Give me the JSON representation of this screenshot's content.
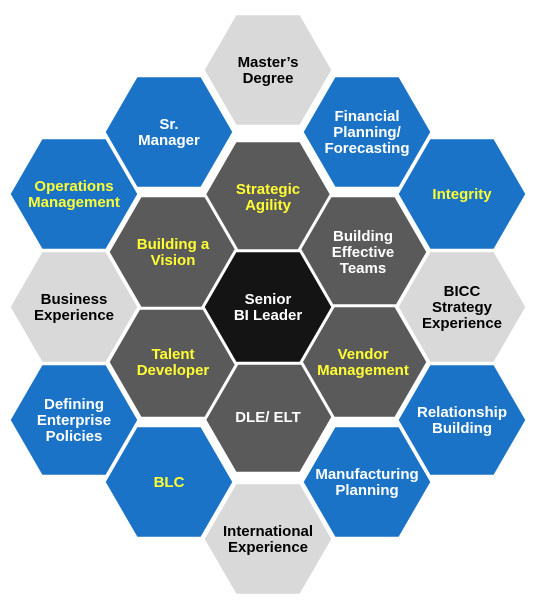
{
  "colors": {
    "center": "#141414",
    "inner": "#5a5a5a",
    "blue": "#1a73c6",
    "light": "#d9d9d9",
    "text_yellow": "#ffff33",
    "text_white": "#ffffff",
    "text_black": "#000000"
  },
  "hexagons": [
    {
      "id": "center",
      "ring": "center",
      "lines": [
        "Senior",
        "BI Leader"
      ],
      "text": "white"
    },
    {
      "id": "inner-0",
      "ring": "inner",
      "lines": [
        "Strategic",
        "Agility"
      ],
      "text": "yellow"
    },
    {
      "id": "inner-1",
      "ring": "inner",
      "lines": [
        "Building",
        "Effective",
        "Teams"
      ],
      "text": "white"
    },
    {
      "id": "inner-2",
      "ring": "inner",
      "lines": [
        "Vendor",
        "Management"
      ],
      "text": "yellow"
    },
    {
      "id": "inner-3",
      "ring": "inner",
      "lines": [
        "DLE/ ELT"
      ],
      "text": "white"
    },
    {
      "id": "inner-4",
      "ring": "inner",
      "lines": [
        "Talent",
        "Developer"
      ],
      "text": "yellow"
    },
    {
      "id": "inner-5",
      "ring": "inner",
      "lines": [
        "Building a",
        "Vision"
      ],
      "text": "yellow"
    },
    {
      "id": "outer-0",
      "ring": "light",
      "lines": [
        "Master’s",
        "Degree"
      ],
      "text": "black"
    },
    {
      "id": "outer-1",
      "ring": "blue",
      "lines": [
        "Financial",
        "Planning/",
        "Forecasting"
      ],
      "text": "white"
    },
    {
      "id": "outer-2",
      "ring": "blue",
      "lines": [
        "Integrity"
      ],
      "text": "yellow"
    },
    {
      "id": "outer-3",
      "ring": "light",
      "lines": [
        "BICC",
        "Strategy",
        "Experience"
      ],
      "text": "black"
    },
    {
      "id": "outer-4",
      "ring": "blue",
      "lines": [
        "Relationship",
        "Building"
      ],
      "text": "white"
    },
    {
      "id": "outer-5",
      "ring": "blue",
      "lines": [
        "Manufacturing",
        "Planning"
      ],
      "text": "white"
    },
    {
      "id": "outer-6",
      "ring": "light",
      "lines": [
        "International",
        "Experience"
      ],
      "text": "black"
    },
    {
      "id": "outer-7",
      "ring": "blue",
      "lines": [
        "BLC"
      ],
      "text": "yellow"
    },
    {
      "id": "outer-8",
      "ring": "blue",
      "lines": [
        "Defining",
        "Enterprise",
        "Policies"
      ],
      "text": "white"
    },
    {
      "id": "outer-9",
      "ring": "light",
      "lines": [
        "Business",
        "Experience"
      ],
      "text": "black"
    },
    {
      "id": "outer-10",
      "ring": "blue",
      "lines": [
        "Operations",
        "Management"
      ],
      "text": "yellow"
    },
    {
      "id": "outer-11",
      "ring": "blue",
      "lines": [
        "Sr.",
        "Manager"
      ],
      "text": "white"
    }
  ]
}
